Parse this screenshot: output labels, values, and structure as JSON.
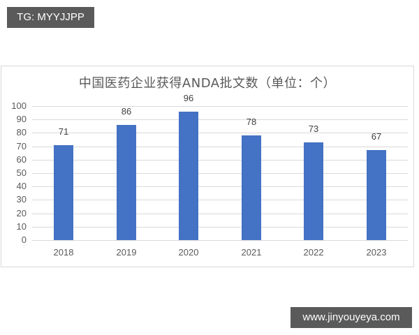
{
  "tag": "TG: MYYJJPP",
  "watermark": "www.jinyouyeya.com",
  "chart_data": {
    "type": "bar",
    "title": "中国医药企业获得ANDA批文数（单位：个）",
    "categories": [
      "2018",
      "2019",
      "2020",
      "2021",
      "2022",
      "2023"
    ],
    "values": [
      71,
      86,
      96,
      78,
      73,
      67
    ],
    "xlabel": "",
    "ylabel": "",
    "ylim": [
      0,
      100
    ],
    "yticks": [
      0,
      10,
      20,
      30,
      40,
      50,
      60,
      70,
      80,
      90,
      100
    ],
    "grid": true,
    "legend": "none",
    "data_labels": true,
    "bar_color": "#4472C4"
  }
}
